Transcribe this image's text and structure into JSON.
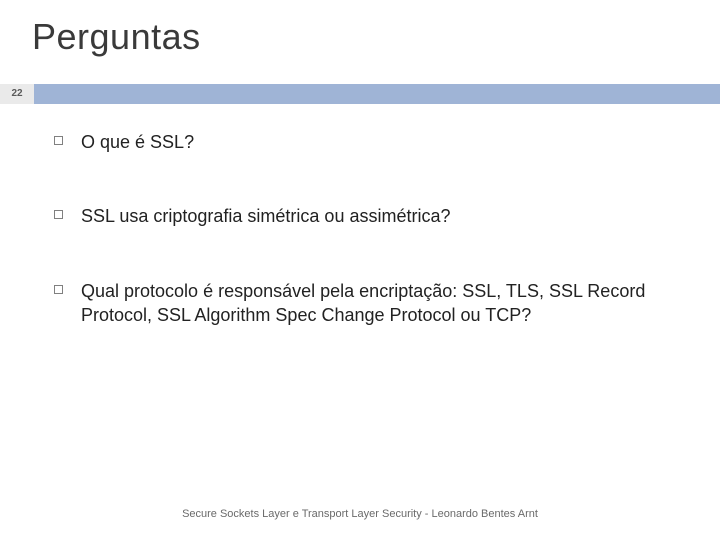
{
  "slide": {
    "title": "Perguntas",
    "number": "22",
    "bar_color": "#9fb4d6",
    "number_bg": "#eaeaea",
    "bullets": [
      "O que é SSL?",
      "SSL usa criptografia simétrica ou assimétrica?",
      "Qual protocolo é responsável pela encriptação: SSL, TLS, SSL Record Protocol, SSL Algorithm Spec Change Protocol ou TCP?"
    ],
    "footer": "Secure Sockets Layer e Transport Layer Security - Leonardo Bentes Arnt"
  },
  "style": {
    "title_fontsize": 36,
    "body_fontsize": 18,
    "footer_fontsize": 11,
    "bullet_border": "#808080",
    "text_color": "#222222",
    "background_color": "#ffffff"
  }
}
